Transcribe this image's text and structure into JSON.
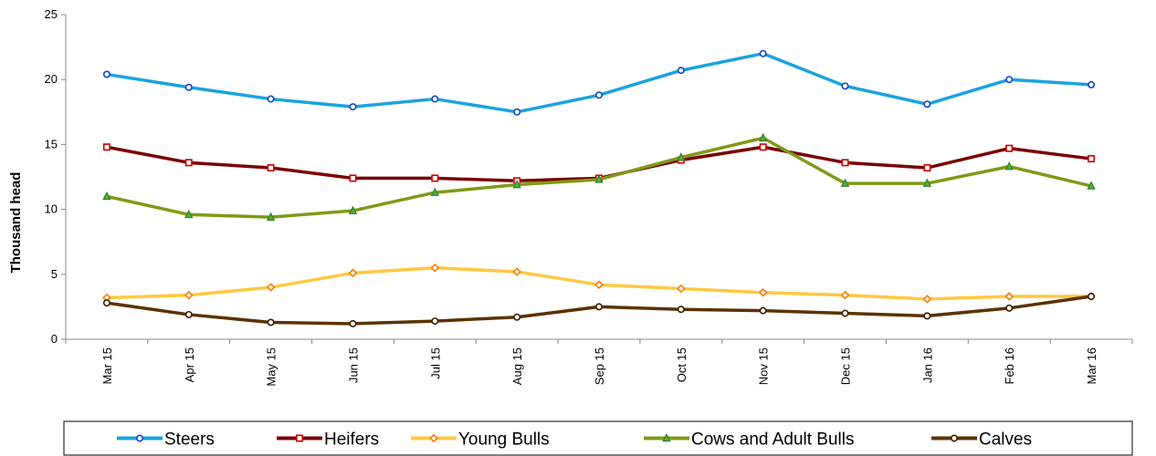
{
  "chart_data": {
    "type": "line",
    "ylabel": "Thousand head",
    "xlabel": "",
    "ylim": [
      0,
      25
    ],
    "yticks": [
      0,
      5,
      10,
      15,
      20,
      25
    ],
    "grid": false,
    "legend_position": "bottom",
    "categories": [
      "Mar 15",
      "Apr 15",
      "May 15",
      "Jun 15",
      "Jul 15",
      "Aug 15",
      "Sep 15",
      "Oct 15",
      "Nov 15",
      "Dec 15",
      "Jan 16",
      "Feb 16",
      "Mar 16"
    ],
    "series": [
      {
        "name": "Steers",
        "color": "#1aa3dd",
        "marker": "circle",
        "values": [
          20.4,
          19.4,
          18.5,
          17.9,
          18.5,
          17.5,
          18.8,
          20.7,
          22.0,
          19.5,
          18.1,
          20.0,
          19.6
        ]
      },
      {
        "name": "Heifers",
        "color": "#7a0000",
        "marker": "square",
        "values": [
          14.8,
          13.6,
          13.2,
          12.4,
          12.4,
          12.2,
          12.4,
          13.8,
          14.8,
          13.6,
          13.2,
          14.7,
          13.9
        ]
      },
      {
        "name": "Young Bulls",
        "color": "#ffc940",
        "marker": "diamond",
        "values": [
          3.2,
          3.4,
          4.0,
          5.1,
          5.5,
          5.2,
          4.2,
          3.9,
          3.6,
          3.4,
          3.1,
          3.3,
          3.3
        ]
      },
      {
        "name": "Cows and Adult Bulls",
        "color": "#7f9a16",
        "marker": "triangle",
        "values": [
          11.0,
          9.6,
          9.4,
          9.9,
          11.3,
          11.9,
          12.3,
          14.0,
          15.5,
          12.0,
          12.0,
          13.3,
          11.8
        ]
      },
      {
        "name": "Calves",
        "color": "#5c3200",
        "marker": "circle",
        "values": [
          2.8,
          1.9,
          1.3,
          1.2,
          1.4,
          1.7,
          2.5,
          2.3,
          2.2,
          2.0,
          1.8,
          2.4,
          3.3
        ]
      }
    ]
  }
}
